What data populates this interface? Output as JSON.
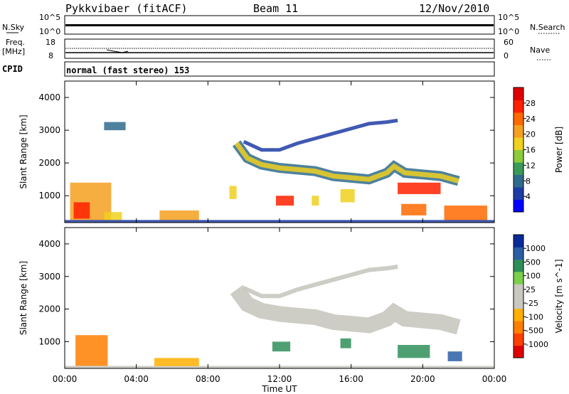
{
  "header": {
    "station": "Pykkvibaer (fitACF)",
    "beam": "Beam 11",
    "date": "12/Nov/2010"
  },
  "strip": {
    "nsky_label": "N.Sky",
    "nsearch_label": "N.Search",
    "nsky_ticks": [
      "10^5",
      "10^0"
    ],
    "nsearch_ticks": [
      "10^5",
      "10^0"
    ],
    "freq_label_1": "Freq.",
    "freq_label_2": "[MHz]",
    "freq_ticks": [
      "18",
      "8"
    ],
    "nave_label": "Nave",
    "nave_ticks": [
      "60",
      "0"
    ],
    "cpid_label": "CPID",
    "cpid_text": "normal (fast stereo) 153"
  },
  "chart_data": [
    {
      "type": "heatmap",
      "name": "power-panel",
      "ylabel": "Slant Range [km]",
      "yticks": [
        "4000",
        "3000",
        "2000",
        "1000"
      ],
      "ylim": [
        180,
        4500
      ],
      "x_ticks": [
        "00:00",
        "04:00",
        "08:00",
        "12:00",
        "16:00",
        "20:00",
        "00:00"
      ],
      "colorbar": {
        "label": "Power [dB]",
        "ticks": [
          "28",
          "24",
          "20",
          "16",
          "12",
          "8",
          "4"
        ],
        "colors": [
          "#0000ff",
          "#1e3ca6",
          "#2f6b8c",
          "#3a9a5a",
          "#8ccc3c",
          "#f0d020",
          "#f5a020",
          "#ff6a00",
          "#ff2000",
          "#e00000"
        ]
      },
      "regions": [
        {
          "t0": 2.2,
          "t1": 3.4,
          "r0": 3000,
          "r1": 3250,
          "level": 2
        },
        {
          "t0": 0.3,
          "t1": 2.6,
          "r0": 250,
          "r1": 1400,
          "level": 6
        },
        {
          "t0": 0.5,
          "t1": 1.4,
          "r0": 300,
          "r1": 800,
          "level": 8
        },
        {
          "t0": 2.2,
          "t1": 3.2,
          "r0": 250,
          "r1": 500,
          "level": 5
        },
        {
          "t0": 5.3,
          "t1": 7.5,
          "r0": 250,
          "r1": 550,
          "level": 6
        },
        {
          "t0": 9.2,
          "t1": 9.6,
          "r0": 900,
          "r1": 1300,
          "level": 5
        },
        {
          "t0": 11.8,
          "t1": 12.8,
          "r0": 700,
          "r1": 1000,
          "level": 8
        },
        {
          "t0": 13.8,
          "t1": 14.2,
          "r0": 700,
          "r1": 1000,
          "level": 5
        },
        {
          "t0": 15.4,
          "t1": 16.2,
          "r0": 800,
          "r1": 1200,
          "level": 5
        },
        {
          "t0": 18.6,
          "t1": 21.0,
          "r0": 1050,
          "r1": 1400,
          "level": 8
        },
        {
          "t0": 18.8,
          "t1": 20.2,
          "r0": 400,
          "r1": 750,
          "level": 7
        },
        {
          "t0": 21.2,
          "t1": 23.6,
          "r0": 250,
          "r1": 700,
          "level": 7
        },
        {
          "t0": 0.0,
          "t1": 24.0,
          "r0": 180,
          "r1": 260,
          "level": 1
        }
      ],
      "band": {
        "points": [
          [
            9.6,
            2600
          ],
          [
            10.2,
            2150
          ],
          [
            11.0,
            1950
          ],
          [
            12.0,
            1850
          ],
          [
            13.0,
            1800
          ],
          [
            14.0,
            1750
          ],
          [
            15.0,
            1600
          ],
          [
            16.0,
            1550
          ],
          [
            17.0,
            1500
          ],
          [
            18.0,
            1700
          ],
          [
            18.4,
            1900
          ],
          [
            19.0,
            1700
          ],
          [
            20.0,
            1650
          ],
          [
            21.0,
            1600
          ],
          [
            22.0,
            1450
          ]
        ],
        "upper_points": [
          [
            10.0,
            2650
          ],
          [
            11.0,
            2400
          ],
          [
            12.0,
            2400
          ],
          [
            13.0,
            2600
          ],
          [
            14.0,
            2750
          ],
          [
            15.0,
            2900
          ],
          [
            16.0,
            3050
          ],
          [
            17.0,
            3200
          ],
          [
            18.0,
            3250
          ],
          [
            18.6,
            3300
          ]
        ]
      }
    },
    {
      "type": "heatmap",
      "name": "velocity-panel",
      "ylabel": "Slant Range [km]",
      "yticks": [
        "4000",
        "3000",
        "2000",
        "1000"
      ],
      "ylim": [
        180,
        4500
      ],
      "x_ticks": [
        "00:00",
        "04:00",
        "08:00",
        "12:00",
        "16:00",
        "20:00",
        "00:00"
      ],
      "xlabel": "Time UT",
      "colorbar": {
        "label": "Velocity [m s^-1]",
        "ticks": [
          "1000",
          "500",
          "100",
          "25",
          "-25",
          "-100",
          "-500",
          "-1000"
        ],
        "colors": [
          "#e00000",
          "#ff4000",
          "#ff7f00",
          "#ffb000",
          "#c8c8c0",
          "#c8c8c0",
          "#7ad04a",
          "#2f8f5a",
          "#2a5fa5",
          "#0a2a9a"
        ]
      },
      "regions": [
        {
          "t0": 0.6,
          "t1": 2.4,
          "r0": 250,
          "r1": 1200,
          "level": 2
        },
        {
          "t0": 0.0,
          "t1": 24.0,
          "r0": 180,
          "r1": 260,
          "level": 4
        },
        {
          "t0": 11.6,
          "t1": 12.6,
          "r0": 700,
          "r1": 1000,
          "level": 7
        },
        {
          "t0": 15.4,
          "t1": 16.0,
          "r0": 800,
          "r1": 1100,
          "level": 7
        },
        {
          "t0": 18.6,
          "t1": 20.4,
          "r0": 500,
          "r1": 900,
          "level": 7
        },
        {
          "t0": 21.4,
          "t1": 22.2,
          "r0": 400,
          "r1": 700,
          "level": 8
        },
        {
          "t0": 5.0,
          "t1": 7.5,
          "r0": 250,
          "r1": 500,
          "level": 3
        }
      ]
    }
  ]
}
